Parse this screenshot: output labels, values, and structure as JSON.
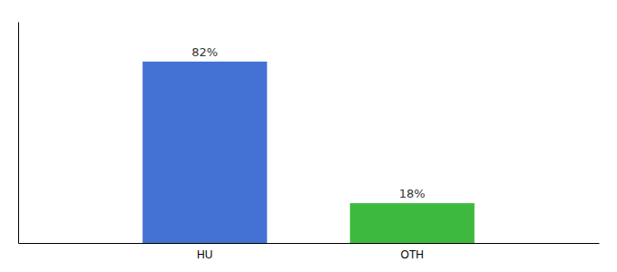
{
  "chart_data": {
    "type": "bar",
    "categories": [
      "HU",
      "OTH"
    ],
    "values": [
      82,
      18
    ],
    "value_labels": [
      "82%",
      "18%"
    ],
    "colors": [
      "#4472d4",
      "#3dba3d"
    ],
    "ylim": [
      0,
      100
    ],
    "data_labels": true,
    "tick_labels": "x",
    "grid": false
  }
}
